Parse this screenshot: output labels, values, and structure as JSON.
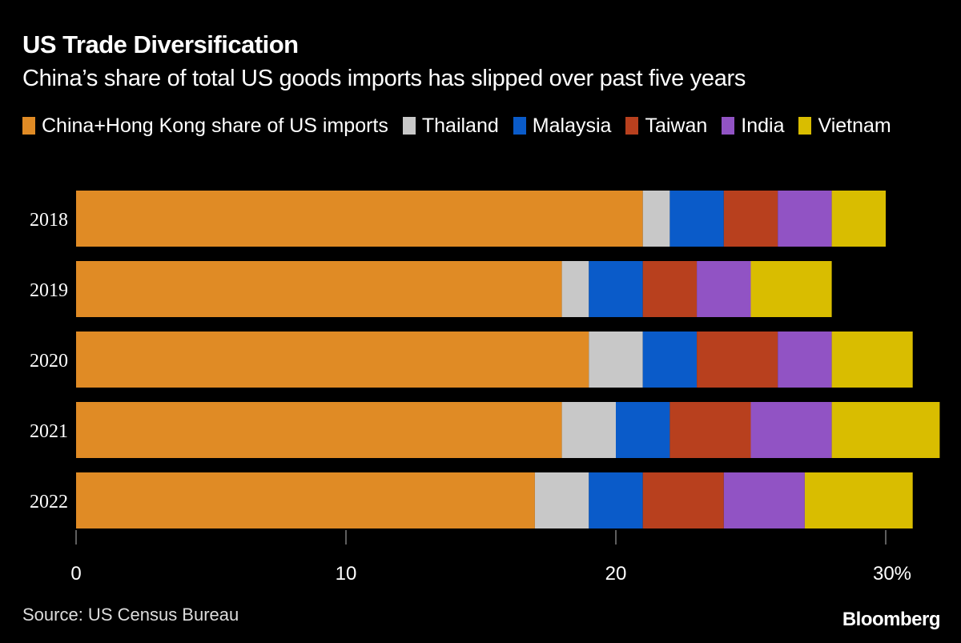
{
  "chart_data": {
    "type": "bar",
    "orientation": "horizontal",
    "stacked": true,
    "title": "US Trade Diversification",
    "subtitle": "China’s share of total US goods imports has slipped over past five years",
    "categories": [
      "2018",
      "2019",
      "2020",
      "2021",
      "2022"
    ],
    "series": [
      {
        "name": "China+Hong Kong share of US imports",
        "color": "#E08B25",
        "values": [
          21,
          18,
          19,
          18,
          17
        ]
      },
      {
        "name": "Thailand",
        "color": "#C8C8C8",
        "values": [
          1,
          1,
          2,
          2,
          2
        ]
      },
      {
        "name": "Malaysia",
        "color": "#0A5BC9",
        "values": [
          2,
          2,
          2,
          2,
          2
        ]
      },
      {
        "name": "Taiwan",
        "color": "#B8401E",
        "values": [
          2,
          2,
          3,
          3,
          3
        ]
      },
      {
        "name": "India",
        "color": "#9153C4",
        "values": [
          2,
          2,
          2,
          3,
          3
        ]
      },
      {
        "name": "Vietnam",
        "color": "#D9BD00",
        "values": [
          2,
          3,
          3,
          4,
          4
        ]
      }
    ],
    "xlim": [
      0,
      32
    ],
    "xticks": [
      0,
      10,
      20,
      30
    ],
    "xtick_labels": [
      "0",
      "10",
      "20",
      "30%"
    ],
    "grid": false,
    "legend_position": "top"
  },
  "footer": {
    "source": "Source: US Census Bureau",
    "logo": "Bloomberg"
  }
}
